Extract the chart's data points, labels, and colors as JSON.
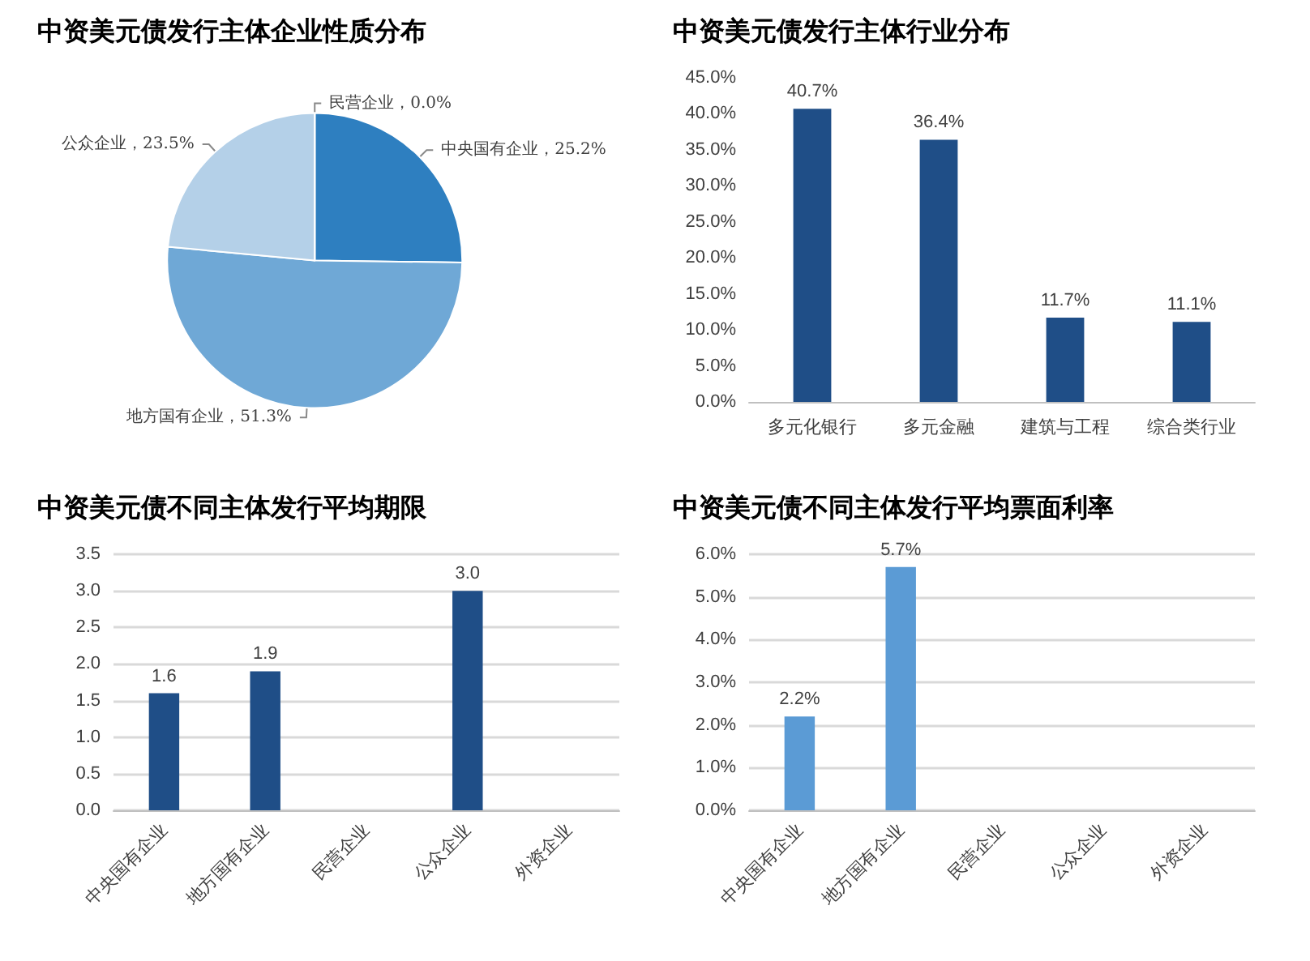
{
  "chart_data": [
    {
      "type": "pie",
      "title": "中资美元债发行主体企业性质分布",
      "categories": [
        "中央国有企业",
        "地方国有企业",
        "公众企业",
        "民营企业"
      ],
      "values": [
        25.2,
        51.3,
        23.5,
        0.0
      ],
      "value_labels": [
        "25.2%",
        "51.3%",
        "23.5%",
        "0.0%"
      ],
      "colors": [
        "#2e7fc0",
        "#6fa8d6",
        "#b4d0e8",
        "#1f4e79"
      ]
    },
    {
      "type": "bar",
      "title": "中资美元债发行主体行业分布",
      "categories": [
        "多元化银行",
        "多元金融",
        "建筑与工程",
        "综合类行业"
      ],
      "values": [
        40.7,
        36.4,
        11.7,
        11.1
      ],
      "value_labels": [
        "40.7%",
        "36.4%",
        "11.7%",
        "11.1%"
      ],
      "color": "#1f4e87",
      "ylim": [
        0,
        45
      ],
      "yticks": [
        {
          "value": 0,
          "label": "0.0%"
        },
        {
          "value": 5,
          "label": "5.0%"
        },
        {
          "value": 10,
          "label": "10.0%"
        },
        {
          "value": 15,
          "label": "15.0%"
        },
        {
          "value": 20,
          "label": "20.0%"
        },
        {
          "value": 25,
          "label": "25.0%"
        },
        {
          "value": 30,
          "label": "30.0%"
        },
        {
          "value": 35,
          "label": "35.0%"
        },
        {
          "value": 40,
          "label": "40.0%"
        },
        {
          "value": 45,
          "label": "45.0%"
        }
      ]
    },
    {
      "type": "bar",
      "title": "中资美元债不同主体发行平均期限",
      "categories": [
        "中央国有企业",
        "地方国有企业",
        "民营企业",
        "公众企业",
        "外资企业"
      ],
      "values": [
        1.6,
        1.9,
        null,
        3.0,
        null
      ],
      "value_labels": [
        "1.6",
        "1.9",
        null,
        "3.0",
        null
      ],
      "color": "#1f4e87",
      "ylim": [
        0,
        3.5
      ],
      "yticks": [
        {
          "value": 0,
          "label": "0.0"
        },
        {
          "value": 0.5,
          "label": "0.5"
        },
        {
          "value": 1,
          "label": "1.0"
        },
        {
          "value": 1.5,
          "label": "1.5"
        },
        {
          "value": 2,
          "label": "2.0"
        },
        {
          "value": 2.5,
          "label": "2.5"
        },
        {
          "value": 3,
          "label": "3.0"
        },
        {
          "value": 3.5,
          "label": "3.5"
        }
      ],
      "grid": true
    },
    {
      "type": "bar",
      "title": "中资美元债不同主体发行平均票面利率",
      "categories": [
        "中央国有企业",
        "地方国有企业",
        "民营企业",
        "公众企业",
        "外资企业"
      ],
      "values": [
        2.2,
        5.7,
        null,
        null,
        null
      ],
      "value_labels": [
        "2.2%",
        "5.7%",
        null,
        null,
        null
      ],
      "color": "#5b9bd5",
      "ylim": [
        0,
        6
      ],
      "yticks": [
        {
          "value": 0,
          "label": "0.0%"
        },
        {
          "value": 1,
          "label": "1.0%"
        },
        {
          "value": 2,
          "label": "2.0%"
        },
        {
          "value": 3,
          "label": "3.0%"
        },
        {
          "value": 4,
          "label": "4.0%"
        },
        {
          "value": 5,
          "label": "5.0%"
        },
        {
          "value": 6,
          "label": "6.0%"
        }
      ],
      "grid": true
    }
  ]
}
